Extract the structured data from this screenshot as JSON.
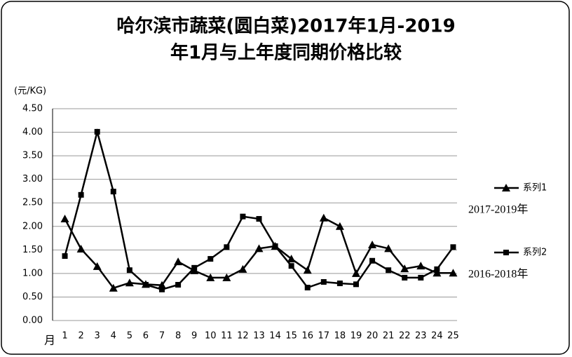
{
  "chart_data": {
    "type": "line",
    "title": [
      "哈尔滨市蔬菜(圆白菜)2017年1月-2019",
      "年1月与上年度同期价格比较"
    ],
    "y_label": "(元/KG)",
    "x_label": "月",
    "categories": [
      "1",
      "2",
      "3",
      "4",
      "5",
      "6",
      "7",
      "8",
      "9",
      "10",
      "11",
      "12",
      "13",
      "14",
      "15",
      "16",
      "17",
      "18",
      "19",
      "20",
      "21",
      "22",
      "23",
      "24",
      "25"
    ],
    "series": [
      {
        "name": "系列1",
        "color": "#000000",
        "marker": "triangle",
        "annotation": "2017-2019年",
        "values": [
          2.16,
          1.52,
          1.15,
          0.69,
          0.8,
          0.77,
          0.75,
          1.25,
          1.06,
          0.91,
          0.91,
          1.09,
          1.53,
          1.58,
          1.31,
          1.07,
          2.18,
          2.0,
          1.0,
          1.61,
          1.53,
          1.1,
          1.16,
          1.01,
          1.01
        ]
      },
      {
        "name": "系列2",
        "color": "#000000",
        "marker": "square",
        "annotation": "2016-2018年",
        "values": [
          1.37,
          2.67,
          4.01,
          2.74,
          1.07,
          0.76,
          0.66,
          0.76,
          1.12,
          1.31,
          1.56,
          2.21,
          2.16,
          1.58,
          1.16,
          0.7,
          0.82,
          0.79,
          0.77,
          1.27,
          1.07,
          0.91,
          0.91,
          1.09,
          1.56
        ]
      }
    ],
    "ylim": [
      0,
      4.5
    ],
    "yticks": [
      {
        "value": 0,
        "label": "0.00"
      },
      {
        "value": 0.5,
        "label": "0.50"
      },
      {
        "value": 1,
        "label": "1.00"
      },
      {
        "value": 1.5,
        "label": "1.50"
      },
      {
        "value": 2,
        "label": "2.00"
      },
      {
        "value": 2.5,
        "label": "2.50"
      },
      {
        "value": 3,
        "label": "3.00"
      },
      {
        "value": 3.5,
        "label": "3.50"
      },
      {
        "value": 4,
        "label": "4.00"
      },
      {
        "value": 4.5,
        "label": "4.50"
      }
    ],
    "grid": true
  }
}
